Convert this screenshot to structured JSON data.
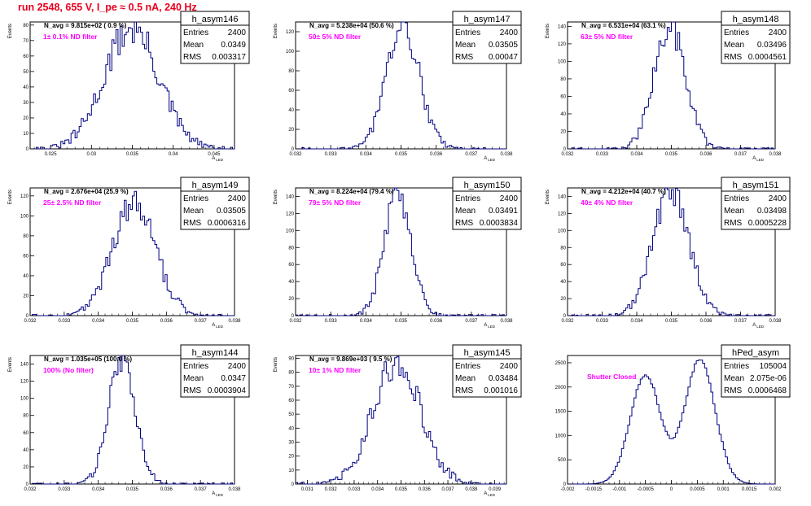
{
  "page_title": "run 2548,   655 V, I_pe ≈ 0.5 nA, 240 Hz",
  "chart_data": [
    {
      "type": "histogram",
      "name": "h_asym146",
      "ylabel": "Events",
      "xlabel": "A",
      "xlabel_sub": "LED",
      "xlim": [
        0.0225,
        0.0475
      ],
      "ylim": [
        0,
        82
      ],
      "xticks": [
        0.025,
        0.03,
        0.035,
        0.04,
        0.045
      ],
      "xtick_labels": [
        "0.025",
        "0.03",
        "0.035",
        "0.04",
        "0.045"
      ],
      "yticks": [
        0,
        10,
        20,
        30,
        40,
        50,
        60,
        70,
        80
      ],
      "navg_label": "N_avg = 9.815e+02 ( 0.9 %)",
      "filter_label": "1± 0.1% ND filter",
      "stats": {
        "title": "h_asym146",
        "entries_key": "Entries",
        "entries": "2400",
        "mean_key": "Mean",
        "mean": "0.0349",
        "rms_key": "RMS",
        "rms": "0.003317"
      },
      "mean": 0.0349,
      "rms": 0.003317,
      "peak": 78,
      "shape": "gauss"
    },
    {
      "type": "histogram",
      "name": "h_asym147",
      "ylabel": "Events",
      "xlabel": "A",
      "xlabel_sub": "LED",
      "xlim": [
        0.032,
        0.038
      ],
      "ylim": [
        0,
        130
      ],
      "xticks": [
        0.032,
        0.033,
        0.034,
        0.035,
        0.036,
        0.037,
        0.038
      ],
      "xtick_labels": [
        "0.032",
        "0.033",
        "0.034",
        "0.035",
        "0.036",
        "0.037",
        "0.038"
      ],
      "yticks": [
        0,
        20,
        40,
        60,
        80,
        100,
        120
      ],
      "navg_label": "N_avg = 5.238e+04 (50.6 %)",
      "filter_label": "50± 5% ND filter",
      "stats": {
        "title": "h_asym147",
        "entries_key": "Entries",
        "entries": "2400",
        "mean_key": "Mean",
        "mean": "0.03505",
        "rms_key": "RMS",
        "rms": "0.00047"
      },
      "mean": 0.03505,
      "rms": 0.00047,
      "peak": 125,
      "shape": "gauss"
    },
    {
      "type": "histogram",
      "name": "h_asym148",
      "ylabel": "Events",
      "xlabel": "A",
      "xlabel_sub": "LED",
      "xlim": [
        0.032,
        0.038
      ],
      "ylim": [
        0,
        145
      ],
      "xticks": [
        0.032,
        0.033,
        0.034,
        0.035,
        0.036,
        0.037,
        0.038
      ],
      "xtick_labels": [
        "0.032",
        "0.033",
        "0.034",
        "0.035",
        "0.036",
        "0.037",
        "0.038"
      ],
      "yticks": [
        0,
        20,
        40,
        60,
        80,
        100,
        120,
        140
      ],
      "navg_label": "N_avg = 6.531e+04 (63.1 %)",
      "filter_label": "63± 5% ND filter",
      "stats": {
        "title": "h_asym148",
        "entries_key": "Entries",
        "entries": "2400",
        "mean_key": "Mean",
        "mean": "0.03496",
        "rms_key": "RMS",
        "rms": "0.0004561"
      },
      "mean": 0.03496,
      "rms": 0.0004561,
      "peak": 138,
      "shape": "gauss"
    },
    {
      "type": "histogram",
      "name": "h_asym149",
      "ylabel": "Events",
      "xlabel": "A",
      "xlabel_sub": "LED",
      "xlim": [
        0.032,
        0.038
      ],
      "ylim": [
        0,
        128
      ],
      "xticks": [
        0.032,
        0.033,
        0.034,
        0.035,
        0.036,
        0.037,
        0.038
      ],
      "xtick_labels": [
        "0.032",
        "0.033",
        "0.034",
        "0.035",
        "0.036",
        "0.037",
        "0.038"
      ],
      "yticks": [
        0,
        20,
        40,
        60,
        80,
        100,
        120
      ],
      "navg_label": "N_avg = 2.676e+04 (25.9 %)",
      "filter_label": "25± 2.5% ND filter",
      "stats": {
        "title": "h_asym149",
        "entries_key": "Entries",
        "entries": "2400",
        "mean_key": "Mean",
        "mean": "0.03505",
        "rms_key": "RMS",
        "rms": "0.0006316"
      },
      "mean": 0.03505,
      "rms": 0.0006316,
      "peak": 112,
      "shape": "gauss"
    },
    {
      "type": "histogram",
      "name": "h_asym150",
      "ylabel": "Events",
      "xlabel": "A",
      "xlabel_sub": "LED",
      "xlim": [
        0.032,
        0.038
      ],
      "ylim": [
        0,
        150
      ],
      "xticks": [
        0.032,
        0.033,
        0.034,
        0.035,
        0.036,
        0.037,
        0.038
      ],
      "xtick_labels": [
        "0.032",
        "0.033",
        "0.034",
        "0.035",
        "0.036",
        "0.037",
        "0.038"
      ],
      "yticks": [
        0,
        20,
        40,
        60,
        80,
        100,
        120,
        140
      ],
      "navg_label": "N_avg = 8.224e+04 (79.4 %)",
      "filter_label": "79± 5% ND filter",
      "stats": {
        "title": "h_asym150",
        "entries_key": "Entries",
        "entries": "2400",
        "mean_key": "Mean",
        "mean": "0.03491",
        "rms_key": "RMS",
        "rms": "0.0003834"
      },
      "mean": 0.03491,
      "rms": 0.0003834,
      "peak": 144,
      "shape": "gauss"
    },
    {
      "type": "histogram",
      "name": "h_asym151",
      "ylabel": "Events",
      "xlabel": "A",
      "xlabel_sub": "LED",
      "xlim": [
        0.032,
        0.038
      ],
      "ylim": [
        0,
        150
      ],
      "xticks": [
        0.032,
        0.033,
        0.034,
        0.035,
        0.036,
        0.037,
        0.038
      ],
      "xtick_labels": [
        "0.032",
        "0.033",
        "0.034",
        "0.035",
        "0.036",
        "0.037",
        "0.038"
      ],
      "yticks": [
        0,
        20,
        40,
        60,
        80,
        100,
        120,
        140
      ],
      "navg_label": "N_avg = 4.212e+04 (40.7 %)",
      "filter_label": "40± 4% ND filter",
      "stats": {
        "title": "h_asym151",
        "entries_key": "Entries",
        "entries": "2400",
        "mean_key": "Mean",
        "mean": "0.03498",
        "rms_key": "RMS",
        "rms": "0.0005228"
      },
      "mean": 0.03498,
      "rms": 0.0005228,
      "peak": 146,
      "shape": "gauss"
    },
    {
      "type": "histogram",
      "name": "h_asym144",
      "ylabel": "Events",
      "xlabel": "A",
      "xlabel_sub": "LED",
      "xlim": [
        0.032,
        0.038
      ],
      "ylim": [
        0,
        150
      ],
      "xticks": [
        0.032,
        0.033,
        0.034,
        0.035,
        0.036,
        0.037,
        0.038
      ],
      "xtick_labels": [
        "0.032",
        "0.033",
        "0.034",
        "0.035",
        "0.036",
        "0.037",
        "0.038"
      ],
      "yticks": [
        0,
        20,
        40,
        60,
        80,
        100,
        120,
        140
      ],
      "navg_label": "N_avg = 1.035e+05 (100.0 %)",
      "filter_label": "100% (No filter)",
      "stats": {
        "title": "h_asym144",
        "entries_key": "Entries",
        "entries": "2400",
        "mean_key": "Mean",
        "mean": "0.0347",
        "rms_key": "RMS",
        "rms": "0.0003904"
      },
      "mean": 0.0347,
      "rms": 0.0003904,
      "peak": 146,
      "shape": "gauss"
    },
    {
      "type": "histogram",
      "name": "h_asym145",
      "ylabel": "Events",
      "xlabel": "A",
      "xlabel_sub": "LED",
      "xlim": [
        0.0305,
        0.0395
      ],
      "ylim": [
        0,
        92
      ],
      "xticks": [
        0.031,
        0.032,
        0.033,
        0.034,
        0.035,
        0.036,
        0.037,
        0.038,
        0.039
      ],
      "xtick_labels": [
        "0.031",
        "0.032",
        "0.033",
        "0.034",
        "0.035",
        "0.036",
        "0.037",
        "0.038",
        "0.039"
      ],
      "yticks": [
        0,
        10,
        20,
        30,
        40,
        50,
        60,
        70,
        80,
        90
      ],
      "navg_label": "N_avg = 9.869e+03 ( 9.5 %)",
      "filter_label": "10± 1% ND filter",
      "stats": {
        "title": "h_asym145",
        "entries_key": "Entries",
        "entries": "2400",
        "mean_key": "Mean",
        "mean": "0.03484",
        "rms_key": "RMS",
        "rms": "0.001016"
      },
      "mean": 0.03484,
      "rms": 0.001016,
      "peak": 88,
      "shape": "gauss"
    },
    {
      "type": "histogram",
      "name": "hPed_asym",
      "ylabel": "",
      "xlabel": "",
      "xlabel_sub": "",
      "xlim": [
        -0.002,
        0.002
      ],
      "ylim": [
        0,
        2650
      ],
      "xticks": [
        -0.002,
        -0.0015,
        -0.001,
        -0.0005,
        0,
        0.0005,
        0.001,
        0.0015,
        0.002
      ],
      "xtick_labels": [
        "-0.002",
        "-0.0015",
        "-0.001",
        "-0.0005",
        "0",
        "0.0005",
        "0.001",
        "0.0015",
        "0.002"
      ],
      "yticks": [
        0,
        500,
        1000,
        1500,
        2000,
        2500
      ],
      "navg_label": "",
      "filter_label": "Shutter Closed",
      "stats": {
        "title": "hPed_asym",
        "entries_key": "Entries",
        "entries": "105004",
        "mean_key": "Mean",
        "mean": "2.075e-06",
        "rms_key": "RMS",
        "rms": "0.0006468"
      },
      "mean": 0.0,
      "rms": 0.0006468,
      "peak": 2560,
      "shape": "double",
      "peaks": [
        {
          "center": -0.0005,
          "height": 2250
        },
        {
          "center": 0.00055,
          "height": 2560
        }
      ]
    }
  ]
}
